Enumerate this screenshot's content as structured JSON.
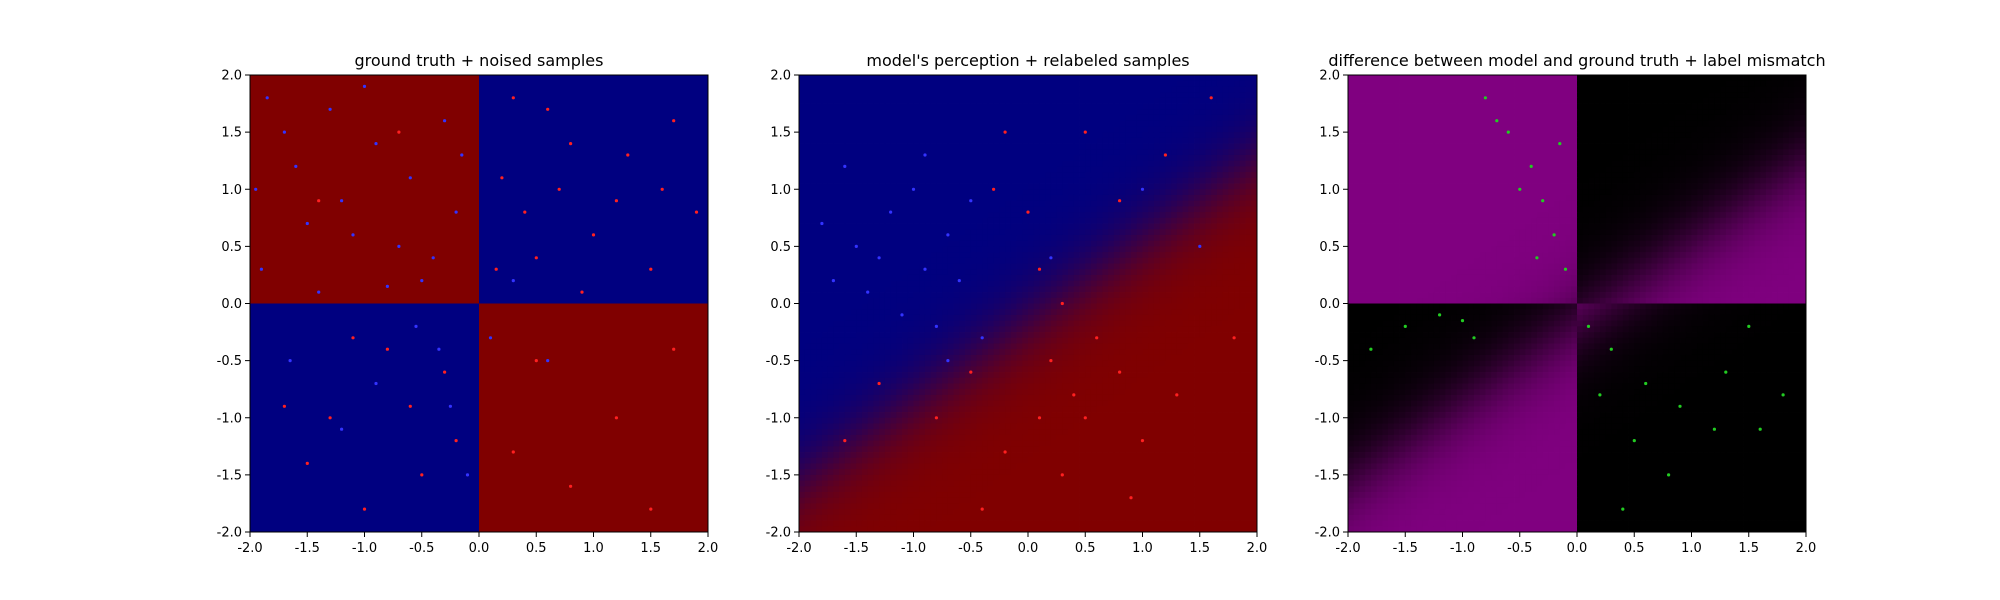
{
  "chart_data": [
    {
      "type": "scatter",
      "title": "ground truth + noised samples",
      "background": "quadrant",
      "xlim": [
        -2.0,
        2.0
      ],
      "ylim": [
        -2.0,
        2.0
      ],
      "xticks": [
        "-2.0",
        "-1.5",
        "-1.0",
        "-0.5",
        "0.0",
        "0.5",
        "1.0",
        "1.5",
        "2.0"
      ],
      "yticks": [
        "-2.0",
        "-1.5",
        "-1.0",
        "-0.5",
        "0.0",
        "0.5",
        "1.0",
        "1.5",
        "2.0"
      ],
      "regions": [
        {
          "quadrant": "top-left",
          "color": "#800000"
        },
        {
          "quadrant": "top-right",
          "color": "#000080"
        },
        {
          "quadrant": "bottom-left",
          "color": "#000080"
        },
        {
          "quadrant": "bottom-right",
          "color": "#800000"
        }
      ],
      "series": [
        {
          "color": "#3333ff",
          "points": [
            [
              -1.85,
              1.8
            ],
            [
              -1.6,
              1.2
            ],
            [
              -1.2,
              0.9
            ],
            [
              -0.7,
              0.5
            ],
            [
              -0.3,
              1.6
            ],
            [
              -1.9,
              0.3
            ],
            [
              -1.4,
              0.1
            ],
            [
              -0.9,
              1.4
            ],
            [
              -0.5,
              0.2
            ],
            [
              -0.2,
              0.8
            ],
            [
              -1.1,
              0.6
            ],
            [
              -1.7,
              1.5
            ],
            [
              0.1,
              -0.3
            ],
            [
              -0.6,
              1.1
            ],
            [
              -1.3,
              1.7
            ],
            [
              -0.4,
              0.4
            ],
            [
              -1.5,
              0.7
            ],
            [
              -0.8,
              0.15
            ],
            [
              -1.95,
              1.0
            ],
            [
              -0.15,
              1.3
            ],
            [
              -1.0,
              1.9
            ],
            [
              -0.35,
              -0.4
            ],
            [
              -0.9,
              -0.7
            ],
            [
              -0.55,
              -0.2
            ],
            [
              -1.2,
              -1.1
            ],
            [
              -0.25,
              -0.9
            ],
            [
              0.3,
              0.2
            ],
            [
              0.6,
              -0.5
            ],
            [
              -1.65,
              -0.5
            ],
            [
              -0.1,
              -1.5
            ]
          ]
        },
        {
          "color": "#ff2020",
          "points": [
            [
              0.3,
              1.8
            ],
            [
              0.8,
              1.4
            ],
            [
              1.2,
              0.9
            ],
            [
              1.7,
              1.6
            ],
            [
              0.5,
              0.4
            ],
            [
              1.5,
              0.3
            ],
            [
              0.2,
              1.1
            ],
            [
              1.9,
              0.8
            ],
            [
              0.9,
              0.1
            ],
            [
              1.3,
              1.3
            ],
            [
              0.6,
              1.7
            ],
            [
              1.0,
              0.6
            ],
            [
              0.4,
              0.8
            ],
            [
              1.6,
              1.0
            ],
            [
              0.15,
              0.3
            ],
            [
              0.7,
              1.0
            ],
            [
              -0.8,
              -0.4
            ],
            [
              -1.3,
              -1.0
            ],
            [
              -0.5,
              -1.5
            ],
            [
              -1.7,
              -0.9
            ],
            [
              -0.3,
              -0.6
            ],
            [
              -1.0,
              -1.8
            ],
            [
              -0.6,
              -0.9
            ],
            [
              -1.5,
              -1.4
            ],
            [
              -0.2,
              -1.2
            ],
            [
              -1.1,
              -0.3
            ],
            [
              0.5,
              -0.5
            ],
            [
              1.2,
              -1.0
            ],
            [
              0.8,
              -1.6
            ],
            [
              1.7,
              -0.4
            ],
            [
              0.3,
              -1.3
            ],
            [
              1.5,
              -1.8
            ],
            [
              -1.4,
              0.9
            ],
            [
              -0.7,
              1.5
            ]
          ]
        }
      ]
    },
    {
      "type": "scatter",
      "title": "model's perception + relabeled samples",
      "background": "model",
      "xlim": [
        -2.0,
        2.0
      ],
      "ylim": [
        -2.0,
        2.0
      ],
      "xticks": [
        "-2.0",
        "-1.5",
        "-1.0",
        "-0.5",
        "0.0",
        "0.5",
        "1.0",
        "1.5",
        "2.0"
      ],
      "yticks": [
        "-2.0",
        "-1.5",
        "-1.0",
        "-0.5",
        "0.0",
        "0.5",
        "1.0",
        "1.5",
        "2.0"
      ],
      "colors": {
        "negative": "#000080",
        "positive": "#800000"
      },
      "series": [
        {
          "color": "#3333ff",
          "points": [
            [
              -1.5,
              0.5
            ],
            [
              -1.2,
              0.8
            ],
            [
              -0.9,
              0.3
            ],
            [
              -0.7,
              0.6
            ],
            [
              -1.4,
              0.1
            ],
            [
              -1.0,
              1.0
            ],
            [
              -0.6,
              0.2
            ],
            [
              -1.8,
              0.7
            ],
            [
              -0.8,
              -0.2
            ],
            [
              -1.1,
              -0.1
            ],
            [
              -1.3,
              0.4
            ],
            [
              -0.5,
              0.9
            ],
            [
              -0.4,
              -0.3
            ],
            [
              -1.6,
              1.2
            ],
            [
              -0.7,
              -0.5
            ],
            [
              -1.7,
              0.2
            ],
            [
              -0.9,
              1.3
            ],
            [
              0.2,
              0.4
            ],
            [
              1.0,
              1.0
            ],
            [
              1.5,
              0.5
            ]
          ]
        },
        {
          "color": "#ff2020",
          "points": [
            [
              0.2,
              -0.5
            ],
            [
              0.5,
              -1.0
            ],
            [
              0.8,
              -0.6
            ],
            [
              0.3,
              -1.5
            ],
            [
              1.0,
              -1.2
            ],
            [
              0.6,
              -0.3
            ],
            [
              0.1,
              -1.0
            ],
            [
              0.9,
              -1.7
            ],
            [
              1.3,
              -0.8
            ],
            [
              0.4,
              -0.8
            ],
            [
              -0.2,
              -1.3
            ],
            [
              -0.4,
              -1.8
            ],
            [
              0.0,
              0.8
            ],
            [
              -0.2,
              1.5
            ],
            [
              0.1,
              0.3
            ],
            [
              -0.3,
              1.0
            ],
            [
              0.5,
              1.5
            ],
            [
              1.2,
              1.3
            ],
            [
              0.8,
              0.9
            ],
            [
              1.6,
              1.8
            ],
            [
              -1.3,
              -0.7
            ],
            [
              -1.6,
              -1.2
            ],
            [
              -0.8,
              -1.0
            ],
            [
              1.8,
              -0.3
            ],
            [
              0.3,
              0.0
            ],
            [
              -0.5,
              -0.6
            ]
          ]
        }
      ]
    },
    {
      "type": "scatter",
      "title": "difference between model and ground truth + label mismatch",
      "background": "difference",
      "xlim": [
        -2.0,
        2.0
      ],
      "ylim": [
        -2.0,
        2.0
      ],
      "xticks": [
        "-2.0",
        "-1.5",
        "-1.0",
        "-0.5",
        "0.0",
        "0.5",
        "1.0",
        "1.5",
        "2.0"
      ],
      "yticks": [
        "-2.0",
        "-1.5",
        "-1.0",
        "-0.5",
        "0.0",
        "0.5",
        "1.0",
        "1.5",
        "2.0"
      ],
      "colors": {
        "match": "#000000",
        "mismatch": "#800080"
      },
      "series": [
        {
          "color": "#22cc22",
          "points": [
            [
              -0.8,
              1.8
            ],
            [
              -0.6,
              1.5
            ],
            [
              -0.4,
              1.2
            ],
            [
              -0.3,
              0.9
            ],
            [
              -0.2,
              0.6
            ],
            [
              -0.5,
              1.0
            ],
            [
              -0.7,
              1.6
            ],
            [
              -0.35,
              0.4
            ],
            [
              -0.15,
              1.4
            ],
            [
              -0.1,
              0.3
            ],
            [
              -1.5,
              -0.2
            ],
            [
              -1.2,
              -0.1
            ],
            [
              -0.9,
              -0.3
            ],
            [
              -1.8,
              -0.4
            ],
            [
              -1.0,
              -0.15
            ],
            [
              0.3,
              -0.4
            ],
            [
              0.6,
              -0.7
            ],
            [
              0.9,
              -0.9
            ],
            [
              1.2,
              -1.1
            ],
            [
              0.5,
              -1.2
            ],
            [
              0.2,
              -0.8
            ],
            [
              0.8,
              -1.5
            ],
            [
              0.4,
              -1.8
            ],
            [
              1.5,
              -0.2
            ],
            [
              1.3,
              -0.6
            ],
            [
              1.8,
              -0.8
            ],
            [
              1.6,
              -1.1
            ],
            [
              0.1,
              -0.2
            ]
          ]
        }
      ]
    }
  ]
}
